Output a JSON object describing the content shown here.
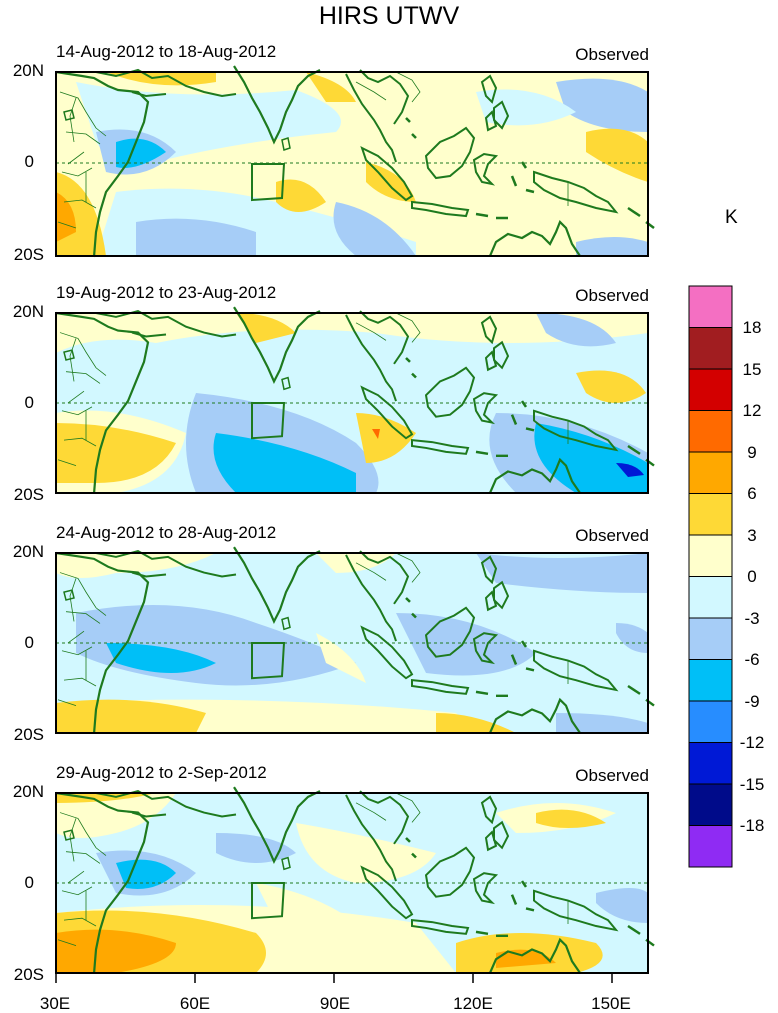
{
  "title": "HIRS UTWV",
  "unit": "K",
  "panels": [
    {
      "date": "14-Aug-2012 to 18-Aug-2012",
      "label": "Observed"
    },
    {
      "date": "19-Aug-2012 to 23-Aug-2012",
      "label": "Observed"
    },
    {
      "date": "24-Aug-2012 to 28-Aug-2012",
      "label": "Observed"
    },
    {
      "date": "29-Aug-2012 to 2-Sep-2012",
      "label": "Observed"
    }
  ],
  "lat_labels": {
    "north": "20N",
    "equator": "0",
    "south": "20S"
  },
  "lon_labels": [
    "30E",
    "60E",
    "90E",
    "120E",
    "150E"
  ],
  "colorbar": {
    "labels": [
      "18",
      "15",
      "12",
      "9",
      "6",
      "3",
      "0",
      "-3",
      "-6",
      "-9",
      "-12",
      "-15",
      "-18"
    ],
    "colors": [
      "#f46fc2",
      "#a11d20",
      "#d30000",
      "#ff6a00",
      "#ffa800",
      "#fed936",
      "#ffffcc",
      "#d2f8ff",
      "#a6cdf7",
      "#00bff7",
      "#278dff",
      "#0019d6",
      "#000b8a",
      "#8f2bf3"
    ]
  }
}
